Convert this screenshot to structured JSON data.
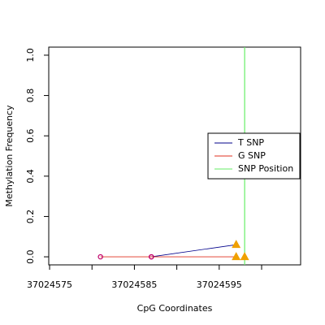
{
  "chart_data": {
    "type": "line",
    "xlabel": "CpG Coordinates",
    "ylabel": "Methylation Frequency",
    "xlim": [
      37024574.9,
      37024604.6
    ],
    "ylim": [
      -0.04,
      1.04
    ],
    "xticks": [
      37024575,
      37024585,
      37024595
    ],
    "xticks_minor": [
      37024580,
      37024590,
      37024600
    ],
    "yticks": [
      {
        "value": 0,
        "label": "0.0"
      },
      0.2,
      0.4,
      0.6,
      0.8,
      {
        "value": 1,
        "label": "1.0"
      }
    ],
    "legend": "right",
    "series": [
      {
        "name": "T SNP",
        "color": "#00008b",
        "x": [
          37024587,
          37024597
        ],
        "values": [
          0,
          0.06
        ],
        "markers": [
          "circle",
          "triangle"
        ]
      },
      {
        "name": "G SNP",
        "color": "#e03020",
        "x": [
          37024581,
          37024587,
          37024597
        ],
        "values": [
          0,
          0,
          0
        ],
        "markers": [
          "circle",
          "circle",
          "triangle"
        ]
      }
    ],
    "snp_position": {
      "name": "SNP Position",
      "color": "#66ee66",
      "x": 37024598,
      "marker_value": 0
    },
    "marker_colors": {
      "circle": "#c0006a",
      "triangle": "#f0a000"
    }
  }
}
